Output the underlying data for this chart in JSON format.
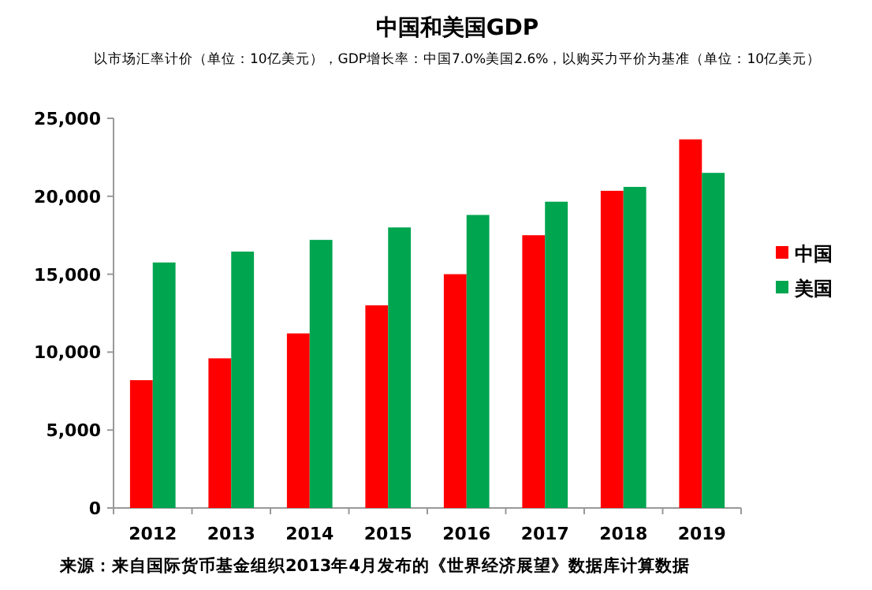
{
  "chart_data": {
    "type": "bar",
    "title": "中国和美国GDP",
    "subtitle": "以市场汇率计价（单位：10亿美元），GDP增长率：中国7.0%美国2.6%，以购买力平价为基准（单位：10亿美元）",
    "categories": [
      "2012",
      "2013",
      "2014",
      "2015",
      "2016",
      "2017",
      "2018",
      "2019"
    ],
    "series": [
      {
        "name": "中国",
        "color": "#ff0000",
        "values": [
          8200,
          9600,
          11200,
          13000,
          15000,
          17500,
          20350,
          23650
        ]
      },
      {
        "name": "美国",
        "color": "#00a550",
        "values": [
          15750,
          16450,
          17200,
          18000,
          18800,
          19650,
          20600,
          21500
        ]
      }
    ],
    "ylim": [
      0,
      25000
    ],
    "yticks": [
      0,
      {
        "value": 5000,
        "label": "5,000"
      },
      {
        "value": 10000,
        "label": "10,000"
      },
      {
        "value": 15000,
        "label": "15,000"
      },
      {
        "value": 20000,
        "label": "20,000"
      },
      {
        "value": 25000,
        "label": "25,000"
      }
    ],
    "grid": false,
    "legend": "right",
    "annotations": [
      "来源：来自国际货币基金组织2013年4月发布的《世界经济展望》数据库计算数据"
    ]
  }
}
